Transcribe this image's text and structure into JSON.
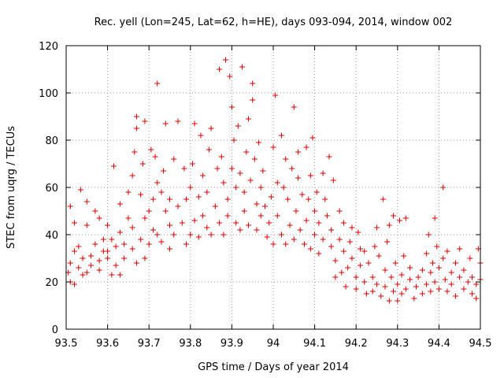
{
  "chart_data": {
    "type": "scatter",
    "title": "Rec. yell (Lon=245, Lat=62, h=HE), days 093-094, 2014, window 002",
    "xlabel": "GPS time / Days of year 2014",
    "ylabel": "STEC from uqrg / TECUs",
    "xlim": [
      93.5,
      94.5
    ],
    "ylim": [
      0,
      120
    ],
    "x_ticks": [
      "93.5",
      "93.6",
      "93.7",
      "93.8",
      "93.9",
      "94",
      "94.1",
      "94.2",
      "94.3",
      "94.4",
      "94.5"
    ],
    "y_ticks": [
      "0",
      "20",
      "40",
      "60",
      "80",
      "100",
      "120"
    ],
    "grid": true,
    "marker": "plus",
    "color": "#d40000",
    "points": [
      [
        93.505,
        24
      ],
      [
        93.51,
        20
      ],
      [
        93.51,
        28
      ],
      [
        93.51,
        52
      ],
      [
        93.52,
        19
      ],
      [
        93.52,
        45
      ],
      [
        93.52,
        33
      ],
      [
        93.53,
        26
      ],
      [
        93.53,
        35
      ],
      [
        93.535,
        59
      ],
      [
        93.54,
        23
      ],
      [
        93.54,
        30
      ],
      [
        93.55,
        24
      ],
      [
        93.55,
        44
      ],
      [
        93.55,
        54
      ],
      [
        93.56,
        27
      ],
      [
        93.56,
        31
      ],
      [
        93.57,
        36
      ],
      [
        93.57,
        50
      ],
      [
        93.58,
        25
      ],
      [
        93.58,
        29
      ],
      [
        93.58,
        47
      ],
      [
        93.59,
        33
      ],
      [
        93.59,
        38
      ],
      [
        93.6,
        30
      ],
      [
        93.6,
        33
      ],
      [
        93.6,
        44
      ],
      [
        93.61,
        23
      ],
      [
        93.61,
        38
      ],
      [
        93.615,
        69
      ],
      [
        93.62,
        27
      ],
      [
        93.62,
        35
      ],
      [
        93.63,
        23
      ],
      [
        93.63,
        41
      ],
      [
        93.63,
        53
      ],
      [
        93.64,
        30
      ],
      [
        93.64,
        36
      ],
      [
        93.65,
        47
      ],
      [
        93.65,
        58
      ],
      [
        93.66,
        34
      ],
      [
        93.66,
        43
      ],
      [
        93.66,
        65
      ],
      [
        93.665,
        75
      ],
      [
        93.67,
        85
      ],
      [
        93.67,
        90
      ],
      [
        93.67,
        28
      ],
      [
        93.68,
        38
      ],
      [
        93.68,
        57
      ],
      [
        93.685,
        70
      ],
      [
        93.69,
        88
      ],
      [
        93.69,
        30
      ],
      [
        93.69,
        47
      ],
      [
        93.7,
        36
      ],
      [
        93.7,
        50
      ],
      [
        93.705,
        76
      ],
      [
        93.71,
        55
      ],
      [
        93.71,
        42
      ],
      [
        93.715,
        73
      ],
      [
        93.72,
        104
      ],
      [
        93.72,
        62
      ],
      [
        93.72,
        40
      ],
      [
        93.73,
        37
      ],
      [
        93.73,
        58
      ],
      [
        93.735,
        67
      ],
      [
        93.74,
        87
      ],
      [
        93.74,
        50
      ],
      [
        93.75,
        34
      ],
      [
        93.75,
        44
      ],
      [
        93.75,
        55
      ],
      [
        93.76,
        72
      ],
      [
        93.76,
        40
      ],
      [
        93.77,
        52
      ],
      [
        93.77,
        88
      ],
      [
        93.78,
        45
      ],
      [
        93.785,
        68
      ],
      [
        93.79,
        36
      ],
      [
        93.79,
        55
      ],
      [
        93.8,
        40
      ],
      [
        93.8,
        60
      ],
      [
        93.805,
        70
      ],
      [
        93.81,
        87
      ],
      [
        93.81,
        46
      ],
      [
        93.82,
        39
      ],
      [
        93.82,
        56
      ],
      [
        93.825,
        82
      ],
      [
        93.83,
        65
      ],
      [
        93.83,
        48
      ],
      [
        93.84,
        43
      ],
      [
        93.84,
        58
      ],
      [
        93.845,
        76
      ],
      [
        93.85,
        85
      ],
      [
        93.85,
        40
      ],
      [
        93.86,
        52
      ],
      [
        93.865,
        68
      ],
      [
        93.87,
        110
      ],
      [
        93.87,
        45
      ],
      [
        93.875,
        73
      ],
      [
        93.88,
        62
      ],
      [
        93.88,
        40
      ],
      [
        93.885,
        114
      ],
      [
        93.89,
        48
      ],
      [
        93.89,
        55
      ],
      [
        93.895,
        107
      ],
      [
        93.9,
        94
      ],
      [
        93.9,
        68
      ],
      [
        93.905,
        80
      ],
      [
        93.91,
        45
      ],
      [
        93.91,
        60
      ],
      [
        93.915,
        86
      ],
      [
        93.92,
        42
      ],
      [
        93.92,
        66
      ],
      [
        93.925,
        111
      ],
      [
        93.93,
        50
      ],
      [
        93.93,
        58
      ],
      [
        93.935,
        75
      ],
      [
        93.94,
        89
      ],
      [
        93.94,
        44
      ],
      [
        93.945,
        63
      ],
      [
        93.95,
        104
      ],
      [
        93.95,
        97
      ],
      [
        93.955,
        72
      ],
      [
        93.96,
        53
      ],
      [
        93.96,
        42
      ],
      [
        93.965,
        79
      ],
      [
        93.97,
        60
      ],
      [
        93.97,
        48
      ],
      [
        93.975,
        67
      ],
      [
        93.98,
        52
      ],
      [
        93.985,
        39
      ],
      [
        93.99,
        45
      ],
      [
        93.995,
        56
      ],
      [
        94.0,
        77
      ],
      [
        94.0,
        36
      ],
      [
        94.005,
        99
      ],
      [
        94.01,
        62
      ],
      [
        94.01,
        48
      ],
      [
        94.02,
        82
      ],
      [
        94.02,
        40
      ],
      [
        94.025,
        60
      ],
      [
        94.03,
        36
      ],
      [
        94.03,
        72
      ],
      [
        94.035,
        55
      ],
      [
        94.04,
        44
      ],
      [
        94.045,
        68
      ],
      [
        94.05,
        94
      ],
      [
        94.05,
        38
      ],
      [
        94.055,
        50
      ],
      [
        94.06,
        64
      ],
      [
        94.06,
        75
      ],
      [
        94.065,
        42
      ],
      [
        94.07,
        57
      ],
      [
        94.075,
        36
      ],
      [
        94.08,
        46
      ],
      [
        94.08,
        77
      ],
      [
        94.085,
        55
      ],
      [
        94.09,
        65
      ],
      [
        94.09,
        34
      ],
      [
        94.095,
        81
      ],
      [
        94.1,
        40
      ],
      [
        94.1,
        50
      ],
      [
        94.105,
        58
      ],
      [
        94.11,
        32
      ],
      [
        94.11,
        45
      ],
      [
        94.12,
        66
      ],
      [
        94.12,
        38
      ],
      [
        94.125,
        55
      ],
      [
        94.13,
        48
      ],
      [
        94.135,
        73
      ],
      [
        94.14,
        35
      ],
      [
        94.14,
        42
      ],
      [
        94.145,
        63
      ],
      [
        94.15,
        29
      ],
      [
        94.15,
        22
      ],
      [
        94.16,
        38
      ],
      [
        94.16,
        50
      ],
      [
        94.165,
        24
      ],
      [
        94.17,
        45
      ],
      [
        94.17,
        33
      ],
      [
        94.175,
        18
      ],
      [
        94.18,
        26
      ],
      [
        94.185,
        37
      ],
      [
        94.19,
        30
      ],
      [
        94.19,
        43
      ],
      [
        94.2,
        22
      ],
      [
        94.2,
        17
      ],
      [
        94.205,
        41
      ],
      [
        94.21,
        27
      ],
      [
        94.21,
        34
      ],
      [
        94.22,
        20
      ],
      [
        94.22,
        33
      ],
      [
        94.225,
        15
      ],
      [
        94.23,
        28
      ],
      [
        94.24,
        22
      ],
      [
        94.24,
        16
      ],
      [
        94.245,
        35
      ],
      [
        94.25,
        19
      ],
      [
        94.25,
        43
      ],
      [
        94.255,
        31
      ],
      [
        94.26,
        14
      ],
      [
        94.265,
        55
      ],
      [
        94.27,
        25
      ],
      [
        94.27,
        18
      ],
      [
        94.275,
        37
      ],
      [
        94.28,
        12
      ],
      [
        94.28,
        44
      ],
      [
        94.285,
        22
      ],
      [
        94.29,
        48
      ],
      [
        94.29,
        16
      ],
      [
        94.295,
        28
      ],
      [
        94.3,
        12
      ],
      [
        94.3,
        19
      ],
      [
        94.305,
        46
      ],
      [
        94.31,
        23
      ],
      [
        94.31,
        15
      ],
      [
        94.315,
        31
      ],
      [
        94.32,
        47
      ],
      [
        94.32,
        17
      ],
      [
        94.33,
        21
      ],
      [
        94.33,
        26
      ],
      [
        94.34,
        13
      ],
      [
        94.345,
        18
      ],
      [
        94.35,
        22
      ],
      [
        94.36,
        15
      ],
      [
        94.36,
        25
      ],
      [
        94.37,
        32
      ],
      [
        94.37,
        19
      ],
      [
        94.375,
        40
      ],
      [
        94.38,
        16
      ],
      [
        94.38,
        24
      ],
      [
        94.385,
        28
      ],
      [
        94.39,
        47
      ],
      [
        94.39,
        20
      ],
      [
        94.395,
        35
      ],
      [
        94.4,
        17
      ],
      [
        94.4,
        26
      ],
      [
        94.41,
        60
      ],
      [
        94.41,
        30
      ],
      [
        94.415,
        21
      ],
      [
        94.42,
        16
      ],
      [
        94.42,
        33
      ],
      [
        94.43,
        24
      ],
      [
        94.43,
        19
      ],
      [
        94.44,
        28
      ],
      [
        94.44,
        14
      ],
      [
        94.45,
        22
      ],
      [
        94.45,
        34
      ],
      [
        94.46,
        17
      ],
      [
        94.46,
        25
      ],
      [
        94.47,
        20
      ],
      [
        94.475,
        30
      ],
      [
        94.48,
        15
      ],
      [
        94.48,
        22
      ],
      [
        94.49,
        13
      ],
      [
        94.49,
        19
      ],
      [
        94.495,
        34
      ],
      [
        94.5,
        21
      ],
      [
        94.5,
        28
      ]
    ]
  }
}
